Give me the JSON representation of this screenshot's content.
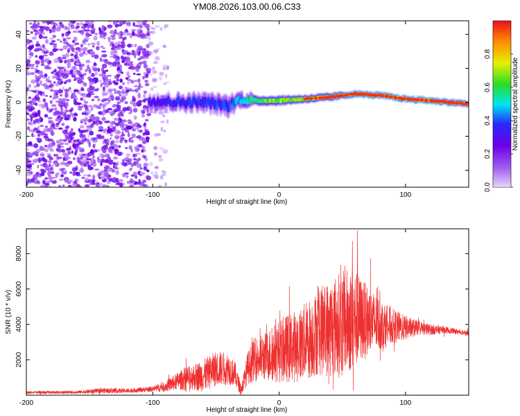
{
  "chart_data": [
    {
      "type": "heatmap",
      "title": "YM08.2026.103.00.06.C33",
      "xlabel": "Height of straight line (km)",
      "ylabel": "Frequency (Hz)",
      "xlim": [
        -200,
        150
      ],
      "ylim": [
        -50,
        48
      ],
      "xticks": [
        -200,
        -100,
        0,
        100
      ],
      "xtick_labels": [
        "-200",
        "-100",
        "0",
        "100"
      ],
      "yticks": [
        -40,
        -20,
        0,
        20,
        40
      ],
      "ytick_labels": [
        "-40",
        "-20",
        "0",
        "20",
        "40"
      ],
      "colorbar": {
        "label": "Normalized spectral amplitude",
        "range": [
          0,
          1
        ],
        "ticks": [
          0.0,
          0.2,
          0.4,
          0.6,
          0.8
        ],
        "tick_labels": [
          "0.0",
          "0.2",
          "0.4",
          "0.6",
          "0.8"
        ]
      },
      "regions": [
        {
          "x_range": [
            -200,
            -103
          ],
          "y_range": [
            -50,
            48
          ],
          "amplitude": 0.18,
          "description": "broadband noise"
        },
        {
          "x_range": [
            -103,
            -88
          ],
          "y_range": [
            -50,
            48
          ],
          "amplitude": 0.05,
          "description": "faint noise"
        }
      ],
      "ridge": [
        {
          "x": -103,
          "y": 1,
          "width": 8,
          "amp": 0.35
        },
        {
          "x": -80,
          "y": 0,
          "width": 9,
          "amp": 0.4
        },
        {
          "x": -60,
          "y": 0,
          "width": 9,
          "amp": 0.42
        },
        {
          "x": -40,
          "y": -2,
          "width": 11,
          "amp": 0.4
        },
        {
          "x": -30,
          "y": 2,
          "width": 7,
          "amp": 0.55
        },
        {
          "x": -20,
          "y": 1,
          "width": 6,
          "amp": 0.65
        },
        {
          "x": 0,
          "y": 1,
          "width": 6,
          "amp": 0.75
        },
        {
          "x": 20,
          "y": 2,
          "width": 5,
          "amp": 0.8
        },
        {
          "x": 40,
          "y": 3,
          "width": 5,
          "amp": 0.85
        },
        {
          "x": 60,
          "y": 5,
          "width": 4,
          "amp": 0.95
        },
        {
          "x": 80,
          "y": 4,
          "width": 4,
          "amp": 0.95
        },
        {
          "x": 100,
          "y": 2,
          "width": 4,
          "amp": 0.95
        },
        {
          "x": 120,
          "y": 1,
          "width": 4,
          "amp": 0.95
        },
        {
          "x": 150,
          "y": -1,
          "width": 4,
          "amp": 0.9
        }
      ]
    },
    {
      "type": "line",
      "xlabel": "Height of straight line (km)",
      "ylabel": "SNR (10 * v/v)",
      "xlim": [
        -200,
        150
      ],
      "ylim": [
        0,
        9400
      ],
      "xticks": [
        -200,
        -100,
        0,
        100
      ],
      "xtick_labels": [
        "-200",
        "-100",
        "0",
        "100"
      ],
      "yticks": [
        2000,
        4000,
        6000,
        8000
      ],
      "ytick_labels": [
        "2000",
        "4000",
        "6000",
        "8000"
      ],
      "color": "#ee3030",
      "series": [
        {
          "name": "SNR",
          "x": [
            -200,
            -180,
            -160,
            -140,
            -120,
            -100,
            -90,
            -80,
            -70,
            -60,
            -50,
            -40,
            -35,
            -30,
            -25,
            -20,
            -10,
            0,
            10,
            20,
            30,
            40,
            50,
            55,
            60,
            70,
            80,
            90,
            100,
            110,
            120,
            130,
            140,
            150
          ],
          "y": [
            150,
            160,
            170,
            250,
            250,
            350,
            500,
            800,
            1000,
            1100,
            1500,
            1500,
            1200,
            300,
            1500,
            2000,
            2200,
            2500,
            2700,
            3000,
            3500,
            3800,
            4000,
            4200,
            4300,
            4200,
            4000,
            3900,
            3800,
            3800,
            3700,
            3700,
            3600,
            3500
          ],
          "spread": [
            80,
            80,
            80,
            150,
            120,
            150,
            300,
            500,
            700,
            900,
            1000,
            900,
            700,
            300,
            900,
            1200,
            1400,
            1800,
            2000,
            2200,
            2400,
            2800,
            3000,
            3000,
            2800,
            2000,
            1500,
            1000,
            700,
            400,
            300,
            200,
            150,
            150
          ],
          "peaks": [
            {
              "x": 52,
              "y": 7300
            },
            {
              "x": 58,
              "y": 8700
            },
            {
              "x": 62,
              "y": 9300
            }
          ]
        }
      ]
    }
  ]
}
